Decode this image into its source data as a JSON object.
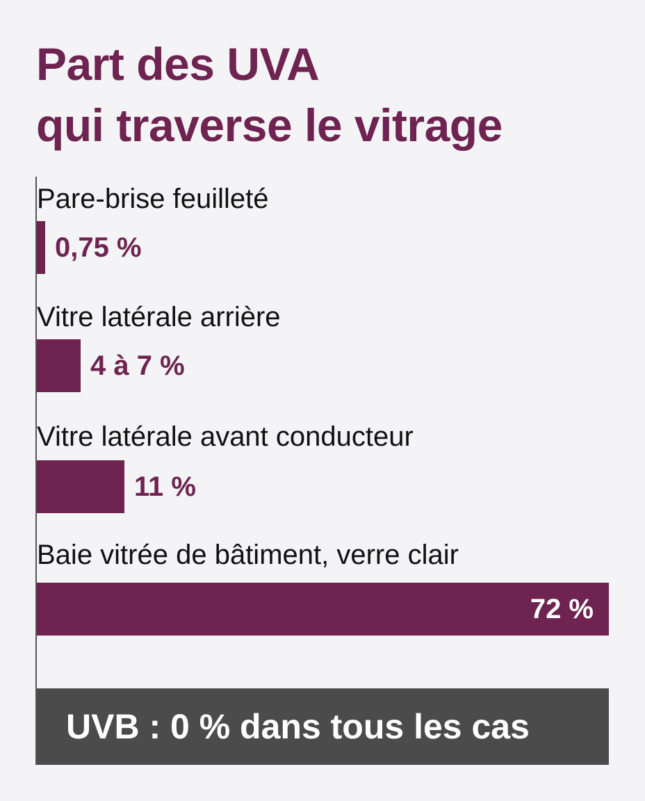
{
  "chart_data": {
    "type": "bar",
    "orientation": "horizontal",
    "title_lines": [
      "Part des UVA",
      "qui traverse le vitrage"
    ],
    "categories": [
      "Pare-brise feuilleté",
      "Vitre latérale arrière",
      "Vitre latérale avant conducteur",
      "Baie vitrée de bâtiment, verre clair"
    ],
    "values": [
      0.75,
      5.5,
      11,
      72
    ],
    "value_labels": [
      "0,75 %",
      "4 à 7 %",
      "11 %",
      "72 %"
    ],
    "xlim": [
      0,
      72
    ],
    "grid": false,
    "bar_color": "#6e2350"
  },
  "footer_note": "UVB : 0 % dans tous les cas",
  "colors": {
    "accent": "#6e2350",
    "footer_background": "#4b4b4b",
    "background": "#f4f4f6"
  }
}
